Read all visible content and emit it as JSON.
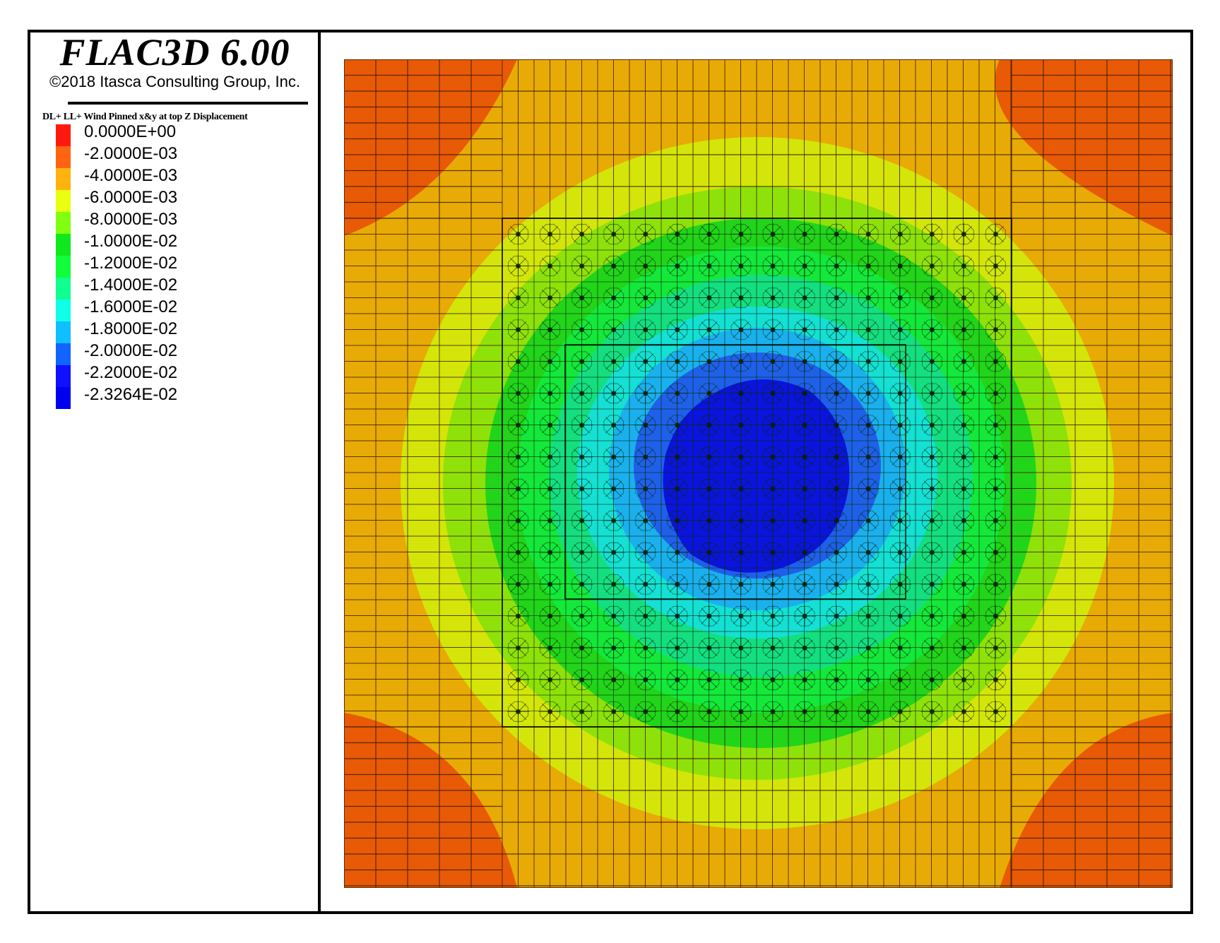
{
  "header": {
    "title": "FLAC3D 6.00",
    "copyright": "©2018 Itasca Consulting Group, Inc."
  },
  "legend": {
    "title": "DL+ LL+ Wind Pinned x&y at top Z Displacement",
    "items": [
      {
        "label": "0.0000E+00",
        "color": "#ff1a10"
      },
      {
        "label": "-2.0000E-03",
        "color": "#ff6410"
      },
      {
        "label": "-4.0000E-03",
        "color": "#ffb310"
      },
      {
        "label": "-6.0000E-03",
        "color": "#e8ff10"
      },
      {
        "label": "-8.0000E-03",
        "color": "#80ff10"
      },
      {
        "label": "-1.0000E-02",
        "color": "#10e81e"
      },
      {
        "label": "-1.2000E-02",
        "color": "#10ff3a"
      },
      {
        "label": "-1.4000E-02",
        "color": "#10ff90"
      },
      {
        "label": "-1.6000E-02",
        "color": "#10ffe8"
      },
      {
        "label": "-1.8000E-02",
        "color": "#10bfff"
      },
      {
        "label": "-2.0000E-02",
        "color": "#1064ff"
      },
      {
        "label": "-2.2000E-02",
        "color": "#1010ff"
      },
      {
        "label": "-2.3264E-02",
        "color": "#0000f0"
      }
    ]
  },
  "chart_data": {
    "type": "heatmap",
    "title": "DL+ LL+ Wind Pinned x&y at top Z Displacement",
    "software": "FLAC3D 6.00",
    "variable": "Z Displacement",
    "contour_levels": [
      0.0,
      -0.002,
      -0.004,
      -0.006,
      -0.008,
      -0.01,
      -0.012,
      -0.014,
      -0.016,
      -0.018,
      -0.02,
      -0.022,
      -0.023264
    ],
    "min_value": -0.023264,
    "max_value": 0.0,
    "pattern": "concentric contours, maximum settlement (-2.3264E-02) at center of pile group, ~0 at the four corners",
    "pile_grid": {
      "rows": 16,
      "cols": 16
    },
    "legend_position": "left panel"
  }
}
